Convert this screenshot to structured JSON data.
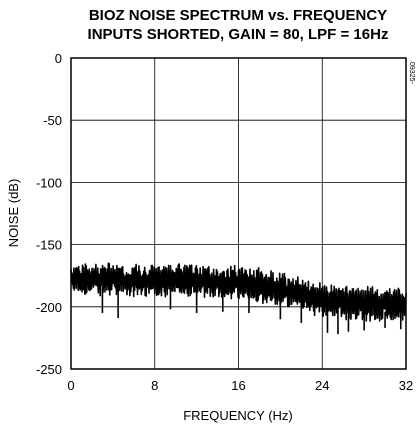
{
  "chart_data": {
    "type": "line",
    "title": "BIOZ NOISE SPECTRUM vs. FREQUENCY",
    "subtitle": "INPUTS SHORTED, GAIN = 80, LPF = 16Hz",
    "xlabel": "FREQUENCY (Hz)",
    "ylabel": "NOISE (dB)",
    "xlim": [
      0,
      32
    ],
    "ylim": [
      -250,
      0
    ],
    "xticks": [
      "0",
      "8",
      "16",
      "24",
      "32"
    ],
    "yticks": [
      "0",
      "-50",
      "-100",
      "-150",
      "-200",
      "-250"
    ],
    "grid": true,
    "figure_code": "09325-",
    "series": [
      {
        "color": "#000000",
        "x": [
          0,
          2,
          4,
          6,
          8,
          10,
          12,
          14,
          16,
          18,
          19,
          20,
          21,
          22,
          23,
          24,
          25,
          26,
          28,
          30,
          32
        ],
        "upper": [
          -165,
          -163,
          -164,
          -165,
          -165,
          -165,
          -165,
          -166,
          -166,
          -168,
          -170,
          -172,
          -174,
          -176,
          -178,
          -180,
          -181,
          -182,
          -183,
          -183,
          -184
        ],
        "lower": [
          -190,
          -192,
          -192,
          -193,
          -192,
          -193,
          -194,
          -195,
          -195,
          -197,
          -199,
          -201,
          -203,
          -205,
          -207,
          -209,
          -210,
          -211,
          -212,
          -212,
          -213
        ],
        "spikes": [
          {
            "x": 3.0,
            "y": -205
          },
          {
            "x": 4.5,
            "y": -209
          },
          {
            "x": 9.5,
            "y": -202
          },
          {
            "x": 12.0,
            "y": -205
          },
          {
            "x": 14.5,
            "y": -204
          },
          {
            "x": 17.0,
            "y": -205
          },
          {
            "x": 20.0,
            "y": -210
          },
          {
            "x": 22.0,
            "y": -213
          },
          {
            "x": 24.5,
            "y": -221
          },
          {
            "x": 25.5,
            "y": -222
          },
          {
            "x": 26.5,
            "y": -220
          },
          {
            "x": 28.0,
            "y": -219
          },
          {
            "x": 30.0,
            "y": -217
          },
          {
            "x": 31.5,
            "y": -218
          }
        ]
      }
    ]
  }
}
